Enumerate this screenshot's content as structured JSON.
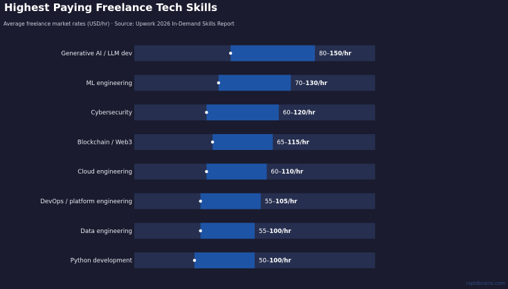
{
  "header": {
    "title": "Highest Paying Freelance Tech Skills",
    "subtitle": "Average freelance market rates (USD/hr)  ·  Source: Upwork 2026 In-Demand Skills Report"
  },
  "watermark": "rapidbrains.com",
  "colors": {
    "background": "#1a1b2e",
    "track": "#262f4f",
    "range_bar": "#1e54a6",
    "marker": "#ffffff",
    "label_text": "#e6e8f0",
    "value_text": "#ffffff"
  },
  "chart_data": {
    "type": "bar",
    "orientation": "horizontal",
    "style": "range",
    "title": "Highest Paying Freelance Tech Skills",
    "subtitle": "Average freelance market rates (USD/hr)  ·  Source: Upwork 2026 In-Demand Skills Report",
    "unit_suffix": "/hr",
    "xlim": [
      0,
      200
    ],
    "grid": false,
    "legend": "none",
    "categories": [
      "Generative AI / LLM dev",
      "ML engineering",
      "Cybersecurity",
      "Blockchain / Web3",
      "Cloud engineering",
      "DevOps / platform engineering",
      "Data engineering",
      "Python development"
    ],
    "low": [
      80,
      70,
      60,
      65,
      60,
      55,
      55,
      50
    ],
    "high": [
      150,
      130,
      120,
      115,
      110,
      105,
      100,
      100
    ],
    "range_labels_low": [
      "80–",
      "70–",
      "60–",
      "65–",
      "60–",
      "55–",
      "55–",
      "50–"
    ],
    "range_labels_high": [
      "150/hr",
      "130/hr",
      "120/hr",
      "115/hr",
      "110/hr",
      "105/hr",
      "100/hr",
      "100/hr"
    ]
  }
}
